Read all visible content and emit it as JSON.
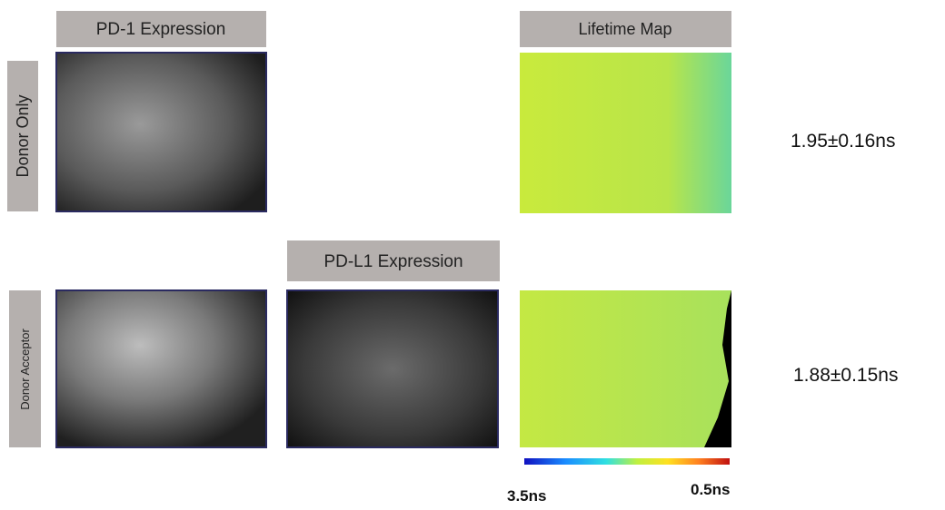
{
  "columns": {
    "pd1": "PD-1 Expression",
    "pdl1": "PD-L1 Expression",
    "lifetime": "Lifetime Map"
  },
  "rows": [
    {
      "label": "Donor Only",
      "lifetime": "1.95±0.16ns"
    },
    {
      "label": "Donor Acceptor",
      "lifetime": "1.88±0.15ns"
    }
  ],
  "colorbar": {
    "min_label": "3.5ns",
    "max_label": "0.5ns"
  }
}
